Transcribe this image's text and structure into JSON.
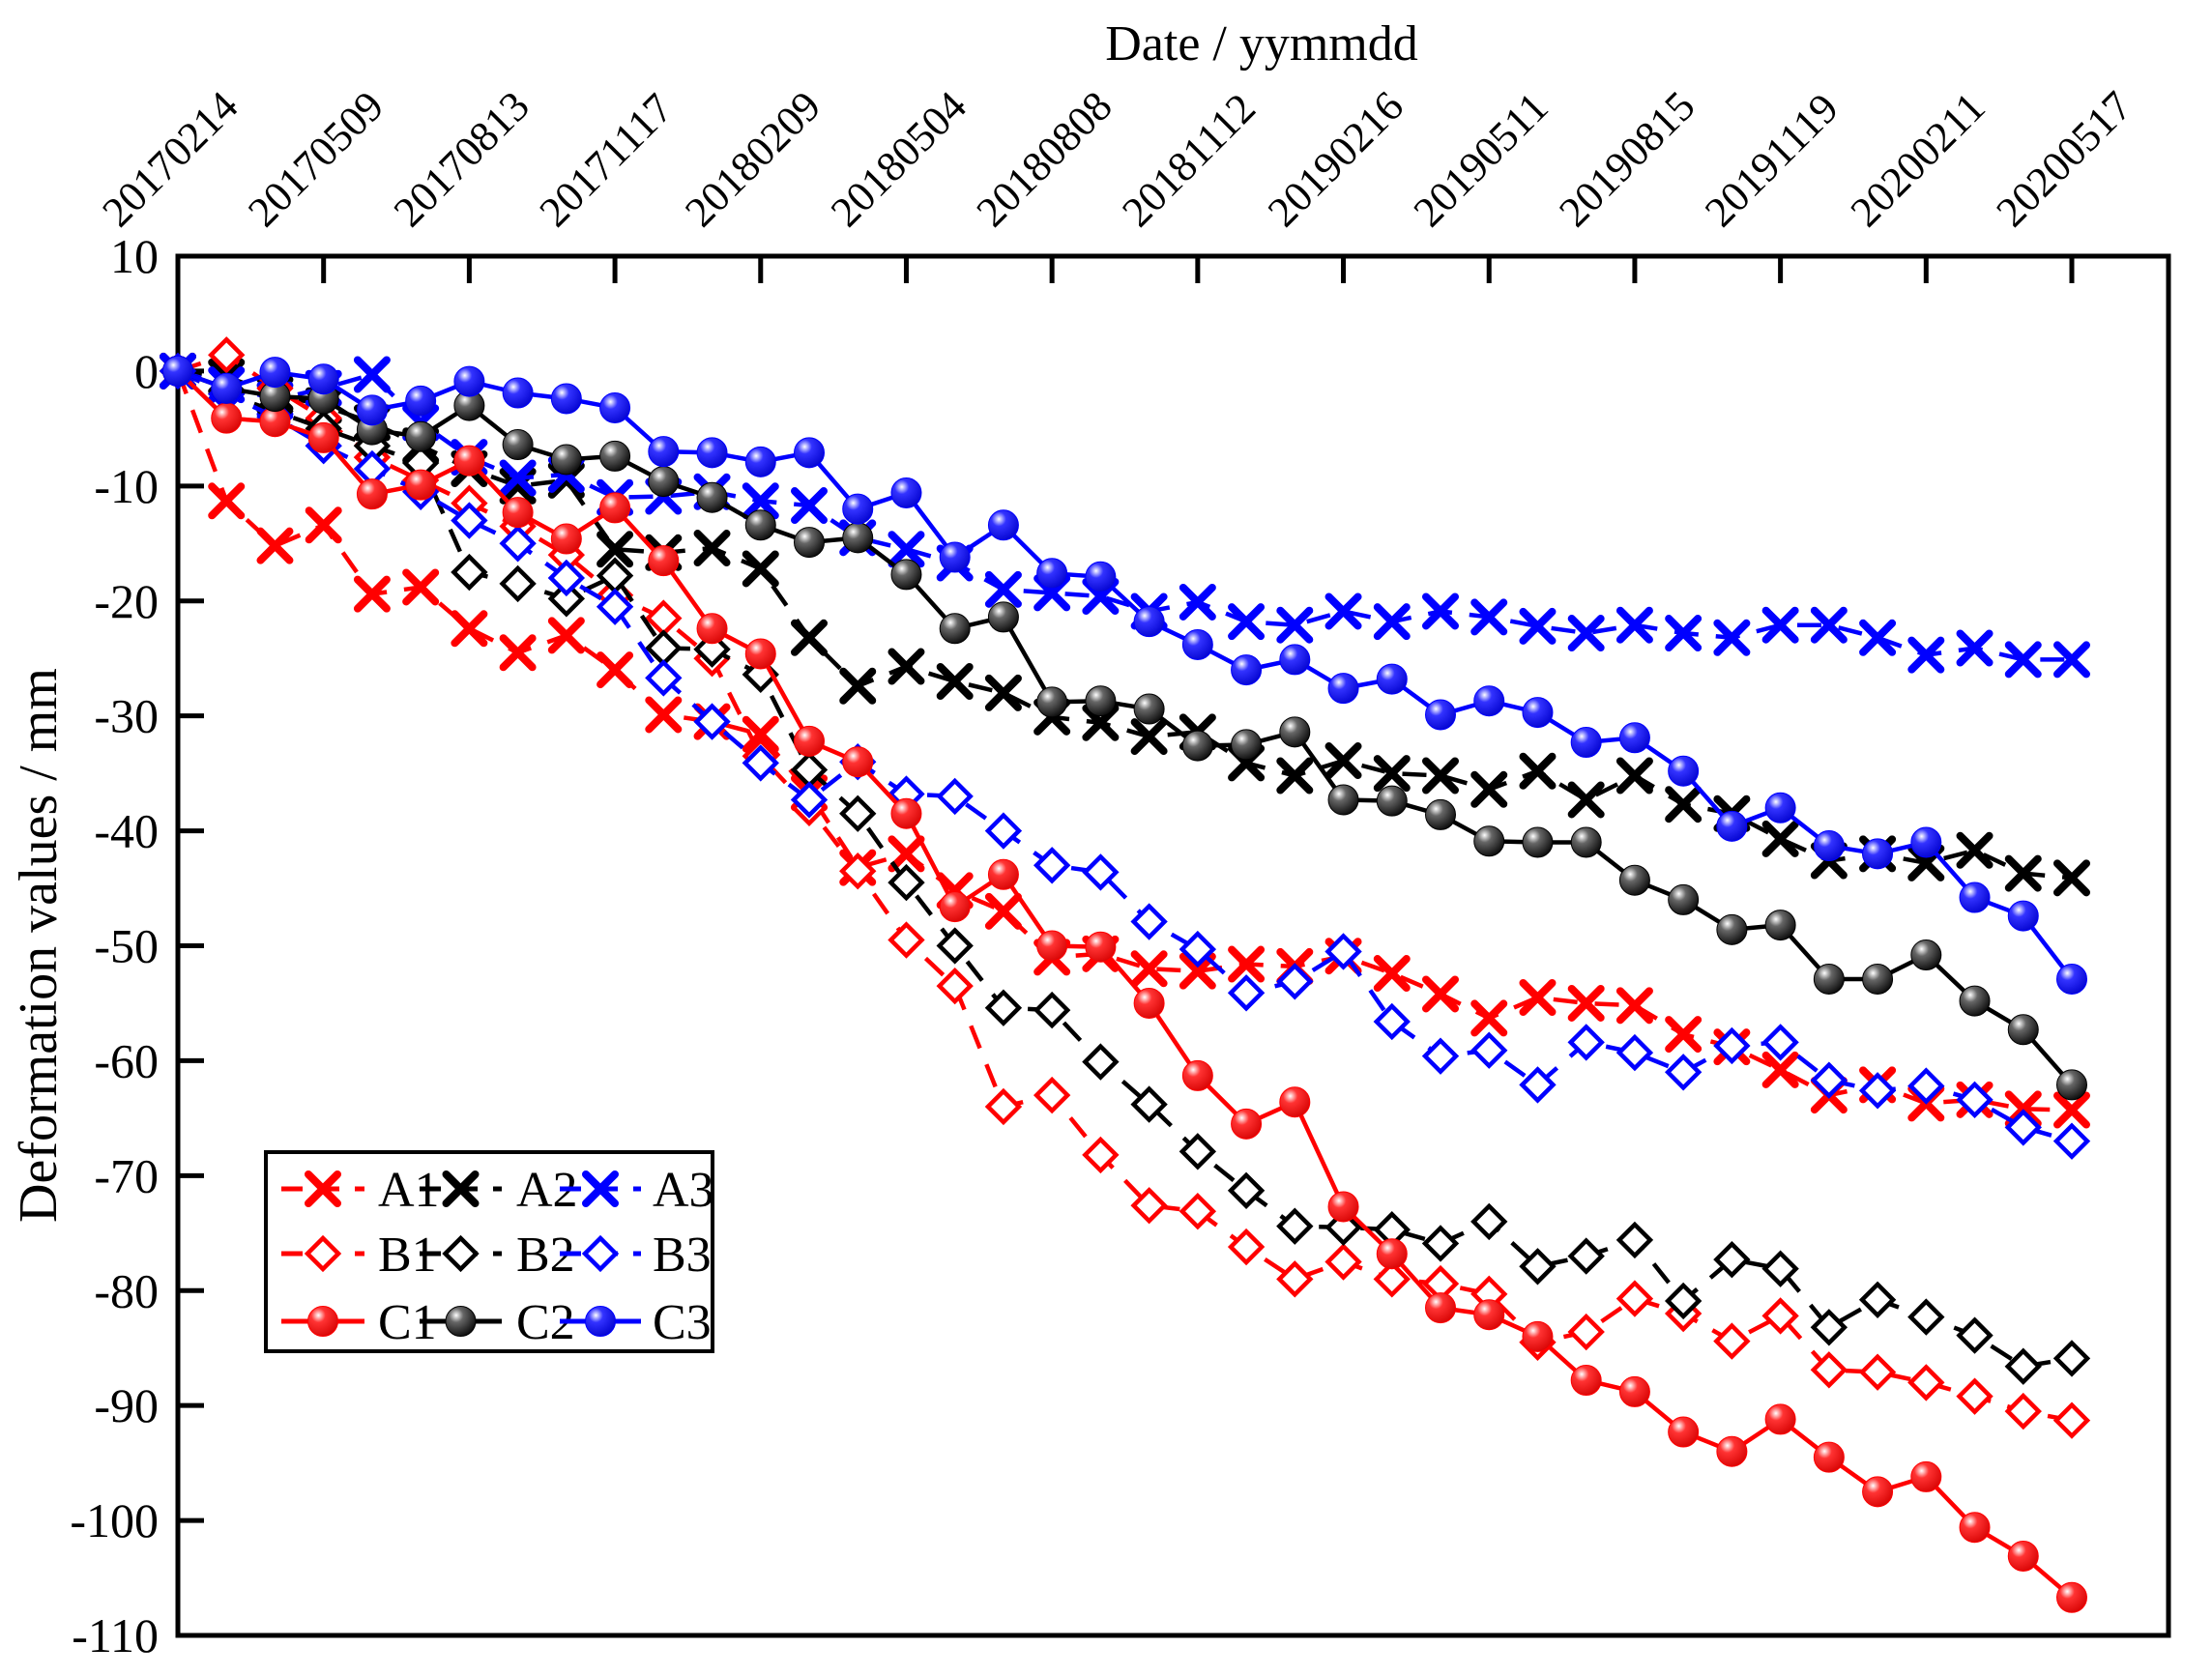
{
  "title": "Date / yymmdd",
  "y_axis": {
    "label": "Deformation values / mm",
    "min": -110,
    "max": 10,
    "tick_step": 10,
    "tick_labels": [
      "10",
      "0",
      "-10",
      "-20",
      "-30",
      "-40",
      "-50",
      "-60",
      "-70",
      "-80",
      "-90",
      "-100",
      "-110"
    ]
  },
  "x_axis": {
    "tick_labels": [
      "20170214",
      "20170509",
      "20170813",
      "20171117",
      "20180209",
      "20180504",
      "20180808",
      "20181112",
      "20190216",
      "20190511",
      "20190815",
      "20191119",
      "20200211",
      "20200517"
    ]
  },
  "colors": {
    "red": "#ff0000",
    "black": "#000000",
    "blue": "#0000ff"
  },
  "legend": {
    "items": [
      {
        "label": "A1",
        "color": "red",
        "line": "dashed",
        "marker": "cross"
      },
      {
        "label": "A2",
        "color": "black",
        "line": "dashed",
        "marker": "cross"
      },
      {
        "label": "A3",
        "color": "blue",
        "line": "dashed",
        "marker": "cross"
      },
      {
        "label": "B1",
        "color": "red",
        "line": "dashed",
        "marker": "diamond"
      },
      {
        "label": "B2",
        "color": "black",
        "line": "dashed",
        "marker": "diamond"
      },
      {
        "label": "B3",
        "color": "blue",
        "line": "dashed",
        "marker": "diamond"
      },
      {
        "label": "C1",
        "color": "red",
        "line": "solid",
        "marker": "ball"
      },
      {
        "label": "C2",
        "color": "black",
        "line": "solid",
        "marker": "ball"
      },
      {
        "label": "C3",
        "color": "blue",
        "line": "solid",
        "marker": "ball"
      }
    ]
  },
  "chart_data": {
    "type": "line",
    "title": "Date / yymmdd",
    "xlabel": "Date / yymmdd",
    "ylabel": "Deformation values / mm",
    "ylim": [
      -110,
      10
    ],
    "grid": false,
    "legend_position": "inside lower-left",
    "x_tick_labels": [
      "20170214",
      "20170509",
      "20170813",
      "20171117",
      "20180209",
      "20180504",
      "20180808",
      "20181112",
      "20190216",
      "20190511",
      "20190815",
      "20191119",
      "20200211",
      "20200517"
    ],
    "points_per_tick_interval": 3,
    "note": "values are deformation in mm; 40 evenly spaced samples spanning tick 0 (20170214) to tick 13 (20200517)",
    "series": [
      {
        "name": "A1",
        "color": "red",
        "line": "dashed",
        "marker": "cross",
        "values": [
          0,
          -11.3,
          -15.2,
          -13.4,
          -19.4,
          -18.8,
          -22.4,
          -24.5,
          -23.0,
          -26.0,
          -29.9,
          -30.5,
          -31.6,
          -36.7,
          -43.2,
          -42.0,
          -45.2,
          -47.0,
          -51.0,
          -50.7,
          -52.0,
          -52.2,
          -51.6,
          -51.8,
          -50.9,
          -52.4,
          -54.2,
          -56.3,
          -54.5,
          -55.0,
          -55.2,
          -57.7,
          -58.8,
          -60.8,
          -63.0,
          -62.1,
          -63.7,
          -63.4,
          -64.2,
          -64.3
        ]
      },
      {
        "name": "A2",
        "color": "black",
        "line": "dashed",
        "marker": "cross",
        "values": [
          0,
          -0.5,
          -2.0,
          -3.0,
          -4.5,
          -6.5,
          -8.5,
          -10.0,
          -9.5,
          -15.5,
          -15.8,
          -15.4,
          -17.2,
          -23.2,
          -27.4,
          -25.7,
          -27.0,
          -28.0,
          -30.1,
          -30.6,
          -31.8,
          -31.4,
          -34.1,
          -35.2,
          -33.9,
          -35.0,
          -35.2,
          -36.4,
          -34.8,
          -37.3,
          -35.2,
          -37.7,
          -38.5,
          -40.7,
          -42.6,
          -42.0,
          -42.8,
          -41.7,
          -43.7,
          -44.1
        ]
      },
      {
        "name": "A3",
        "color": "blue",
        "line": "dashed",
        "marker": "cross",
        "values": [
          0,
          -1.2,
          -2.5,
          -1.5,
          -0.3,
          -4.5,
          -7.5,
          -9.3,
          -9.0,
          -11.0,
          -10.9,
          -10.5,
          -11.3,
          -11.7,
          -14.5,
          -15.5,
          -16.7,
          -19.0,
          -19.3,
          -19.6,
          -20.9,
          -20.1,
          -21.8,
          -22.1,
          -20.9,
          -21.8,
          -20.9,
          -21.4,
          -22.2,
          -22.8,
          -22.1,
          -22.8,
          -23.2,
          -22.1,
          -22.1,
          -23.2,
          -24.7,
          -24.1,
          -25.1,
          -25.1
        ]
      },
      {
        "name": "B1",
        "color": "red",
        "line": "dashed",
        "marker": "diamond",
        "values": [
          0,
          1.4,
          -1.5,
          -4.1,
          -7.5,
          -9.5,
          -11.5,
          -13.5,
          -16.0,
          -19.5,
          -21.5,
          -25.0,
          -33.5,
          -38.0,
          -43.5,
          -49.5,
          -53.5,
          -64.0,
          -63.0,
          -68.2,
          -72.6,
          -73.1,
          -76.2,
          -79.0,
          -77.5,
          -79.0,
          -79.4,
          -80.3,
          -84.5,
          -83.6,
          -80.7,
          -82.0,
          -84.4,
          -82.2,
          -86.9,
          -87.1,
          -88.0,
          -89.2,
          -90.5,
          -91.3
        ]
      },
      {
        "name": "B2",
        "color": "black",
        "line": "dashed",
        "marker": "diamond",
        "values": [
          0,
          -2.0,
          -3.5,
          -5.0,
          -6.5,
          -8.0,
          -17.5,
          -18.5,
          -19.8,
          -17.8,
          -24.1,
          -24.2,
          -26.4,
          -34.7,
          -38.5,
          -44.5,
          -50.0,
          -55.4,
          -55.6,
          -60.1,
          -63.8,
          -67.9,
          -71.3,
          -74.4,
          -74.5,
          -74.7,
          -75.9,
          -74.0,
          -77.9,
          -77.0,
          -75.6,
          -80.9,
          -77.3,
          -78.1,
          -83.2,
          -80.8,
          -82.3,
          -83.9,
          -86.6,
          -85.9
        ]
      },
      {
        "name": "B3",
        "color": "blue",
        "line": "dashed",
        "marker": "diamond",
        "values": [
          0,
          -2.0,
          -4.0,
          -6.5,
          -8.5,
          -10.5,
          -13.0,
          -15.0,
          -18.0,
          -20.5,
          -26.7,
          -30.5,
          -34.1,
          -37.3,
          -34.0,
          -36.8,
          -37.0,
          -40.0,
          -43.0,
          -43.6,
          -47.9,
          -50.3,
          -54.1,
          -53.1,
          -50.5,
          -56.6,
          -59.6,
          -59.1,
          -62.1,
          -58.4,
          -59.3,
          -61.0,
          -58.7,
          -58.4,
          -61.7,
          -62.6,
          -62.2,
          -63.4,
          -65.8,
          -67.0
        ]
      },
      {
        "name": "C1",
        "color": "red",
        "line": "solid",
        "marker": "ball",
        "values": [
          0,
          -4.1,
          -4.4,
          -5.8,
          -10.7,
          -9.9,
          -7.8,
          -12.3,
          -14.6,
          -11.9,
          -16.5,
          -22.4,
          -24.6,
          -32.2,
          -34.0,
          -38.5,
          -46.6,
          -43.8,
          -50.0,
          -50.1,
          -55.0,
          -61.3,
          -65.5,
          -63.6,
          -72.7,
          -76.8,
          -81.5,
          -82.1,
          -84.0,
          -87.8,
          -88.8,
          -92.3,
          -94.0,
          -91.2,
          -94.5,
          -97.5,
          -96.2,
          -100.6,
          -103.1,
          -106.7
        ]
      },
      {
        "name": "C2",
        "color": "black",
        "line": "solid",
        "marker": "ball",
        "values": [
          0,
          -1.5,
          -2.2,
          -2.4,
          -5.1,
          -5.7,
          -3.0,
          -6.4,
          -7.7,
          -7.4,
          -9.6,
          -11.0,
          -13.4,
          -14.9,
          -14.5,
          -17.7,
          -22.4,
          -21.4,
          -28.8,
          -28.7,
          -29.4,
          -32.6,
          -32.5,
          -31.4,
          -37.3,
          -37.4,
          -38.6,
          -40.9,
          -41.0,
          -41.0,
          -44.3,
          -46.0,
          -48.6,
          -48.2,
          -52.9,
          -52.9,
          -50.8,
          -54.8,
          -57.3,
          -62.1
        ]
      },
      {
        "name": "C3",
        "color": "blue",
        "line": "solid",
        "marker": "ball",
        "values": [
          0,
          -1.5,
          -0.1,
          -0.7,
          -3.4,
          -2.6,
          -0.9,
          -1.9,
          -2.4,
          -3.2,
          -7.0,
          -7.1,
          -7.9,
          -7.1,
          -12.0,
          -10.6,
          -16.2,
          -13.4,
          -17.6,
          -17.9,
          -21.8,
          -23.8,
          -26.0,
          -25.1,
          -27.6,
          -26.8,
          -29.9,
          -28.7,
          -29.7,
          -32.3,
          -31.9,
          -34.8,
          -39.6,
          -38.0,
          -41.3,
          -42.0,
          -41.0,
          -45.8,
          -47.4,
          -52.9
        ]
      }
    ]
  }
}
